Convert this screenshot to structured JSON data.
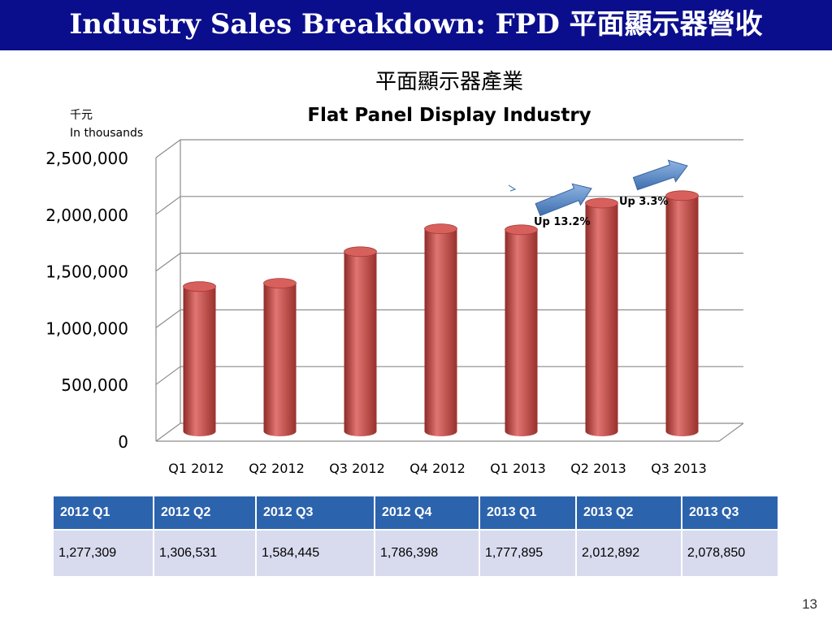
{
  "slide": {
    "title": "Industry Sales Breakdown: FPD  平面顯示器營收",
    "page_number": "13"
  },
  "colors": {
    "title_bar": "#0b0e8c",
    "bar_fill": "#c0504d",
    "arrow_fill": "#4f81bd",
    "table_header": "#2c63ad",
    "table_cell": "#d8dbee"
  },
  "chart_data": {
    "type": "bar",
    "title_zh": "平面顯示器產業",
    "title": "Flat Panel Display Industry",
    "unit_zh": "千元",
    "unit_en": "In thousands",
    "categories": [
      "Q1 2012",
      "Q2 2012",
      "Q3 2012",
      "Q4 2012",
      "Q1 2013",
      "Q2 2013",
      "Q3 2013"
    ],
    "values": [
      1277309,
      1306531,
      1584445,
      1786398,
      1777895,
      2012892,
      2078850
    ],
    "ylim": [
      0,
      2500000
    ],
    "yticks": [
      "0",
      "500,000",
      "1,000,000",
      "1,500,000",
      "2,000,000",
      "2,500,000"
    ],
    "grid": true,
    "legend": "none",
    "annotations": [
      {
        "text": "Up 13.2%",
        "category": "Q2 2013"
      },
      {
        "text": "Up 3.3%",
        "category": "Q3 2013"
      }
    ]
  },
  "table": {
    "headers": [
      "2012 Q1",
      "2012 Q2",
      "2012 Q3",
      "2012 Q4",
      "2013 Q1",
      "2013 Q2",
      "2013 Q3"
    ],
    "values": [
      "1,277,309",
      "1,306,531",
      "1,584,445",
      "1,786,398",
      "1,777,895",
      "2,012,892",
      "2,078,850"
    ]
  }
}
